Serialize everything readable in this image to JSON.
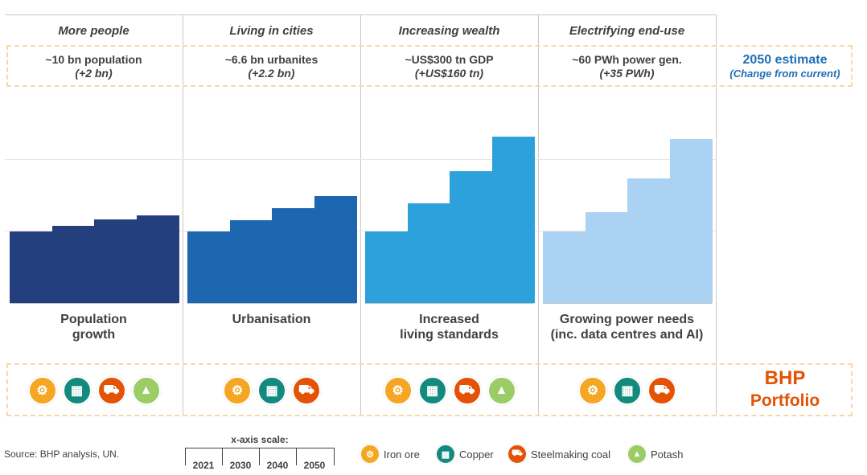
{
  "columns": [
    {
      "title": "More people",
      "estimate": "~10 bn population",
      "change": "(+2 bn)",
      "label_line1": "Population",
      "label_line2": "growth",
      "values": [
        100,
        108,
        117,
        123
      ]
    },
    {
      "title": "Living in cities",
      "estimate": "~6.6 bn urbanites",
      "change": "(+2.2 bn)",
      "label_line1": "Urbanisation",
      "label_line2": "",
      "values": [
        100,
        116,
        133,
        150
      ]
    },
    {
      "title": "Increasing wealth",
      "estimate": "~US$300 tn GDP",
      "change": "(+US$160 tn)",
      "label_line1": "Increased",
      "label_line2": "living standards",
      "values": [
        100,
        139,
        184,
        233
      ]
    },
    {
      "title": "Electrifying end-use",
      "estimate": "~60 PWh power gen.",
      "change": "(+35 PWh)",
      "label_line1": "Growing power needs",
      "label_line2": "(inc. data centres and AI)",
      "values": [
        100,
        127,
        174,
        229
      ]
    }
  ],
  "estimate_header": {
    "line1": "2050 estimate",
    "line2": "(Change from current)"
  },
  "portfolio": {
    "line1": "BHP",
    "line2": "Portfolio"
  },
  "source": "Source: BHP analysis, UN.",
  "x_axis_scale": {
    "title": "x-axis scale:",
    "labels": [
      "2021",
      "2030",
      "2040",
      "2050"
    ]
  },
  "commodities": [
    {
      "name": "Iron ore",
      "icon": "iron-ore-icon",
      "color": "#f5a623"
    },
    {
      "name": "Copper",
      "icon": "copper-icon",
      "color": "#138a7e"
    },
    {
      "name": "Steelmaking coal",
      "icon": "steelmaking-coal-icon",
      "color": "#e35205"
    },
    {
      "name": "Potash",
      "icon": "potash-icon",
      "color": "#9ccc65"
    }
  ],
  "column_icons": [
    [
      "iron-ore-icon",
      "copper-icon",
      "steelmaking-coal-icon",
      "potash-icon"
    ],
    [
      "iron-ore-icon",
      "copper-icon",
      "steelmaking-coal-icon"
    ],
    [
      "iron-ore-icon",
      "copper-icon",
      "steelmaking-coal-icon",
      "potash-icon"
    ],
    [
      "iron-ore-icon",
      "copper-icon",
      "steelmaking-coal-icon"
    ]
  ],
  "bar_colors": [
    "#233f7d",
    "#1d66b0",
    "#2da1dc",
    "#abd2f2"
  ],
  "chart_data": {
    "type": "bar",
    "categories": [
      "2021",
      "2030",
      "2040",
      "2050"
    ],
    "series": [
      {
        "name": "Population growth",
        "values": [
          100,
          108,
          117,
          123
        ]
      },
      {
        "name": "Urbanisation",
        "values": [
          100,
          116,
          133,
          150
        ]
      },
      {
        "name": "Increased living standards",
        "values": [
          100,
          139,
          184,
          233
        ]
      },
      {
        "name": "Growing power needs (inc. data centres and AI)",
        "values": [
          100,
          127,
          174,
          229
        ]
      }
    ],
    "ylim": [
      0,
      300
    ],
    "grid": true
  }
}
